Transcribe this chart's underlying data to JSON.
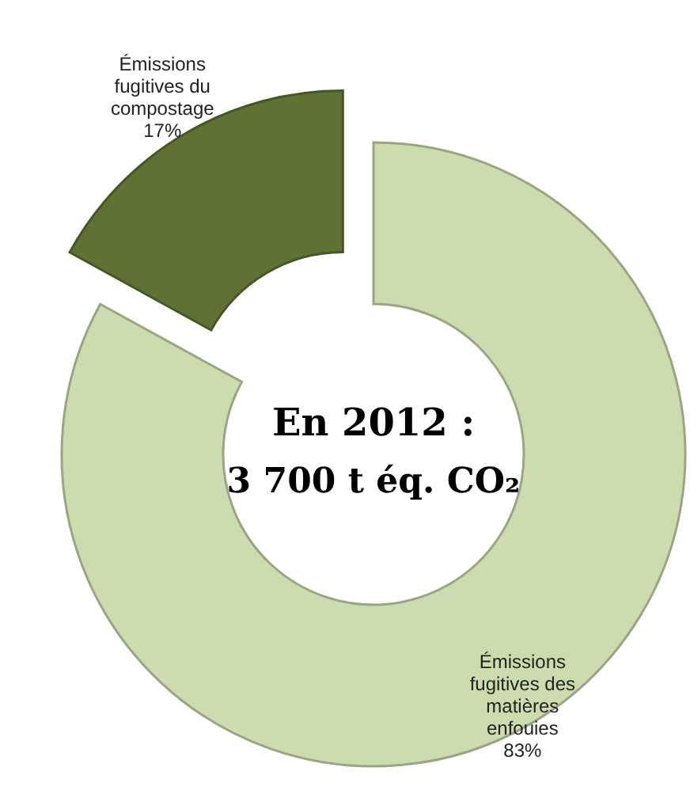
{
  "chart_data": {
    "type": "donut",
    "title": "En 2012 :",
    "subtitle": "3 700 t éq. CO₂",
    "categories": [
      "Émissions fugitives des matières enfouies",
      "Émissions fugitives du compostage"
    ],
    "values": [
      83,
      17
    ],
    "colors": [
      "#cddcae",
      "#5f7233"
    ],
    "value_labels": [
      "83%",
      "17%"
    ]
  }
}
